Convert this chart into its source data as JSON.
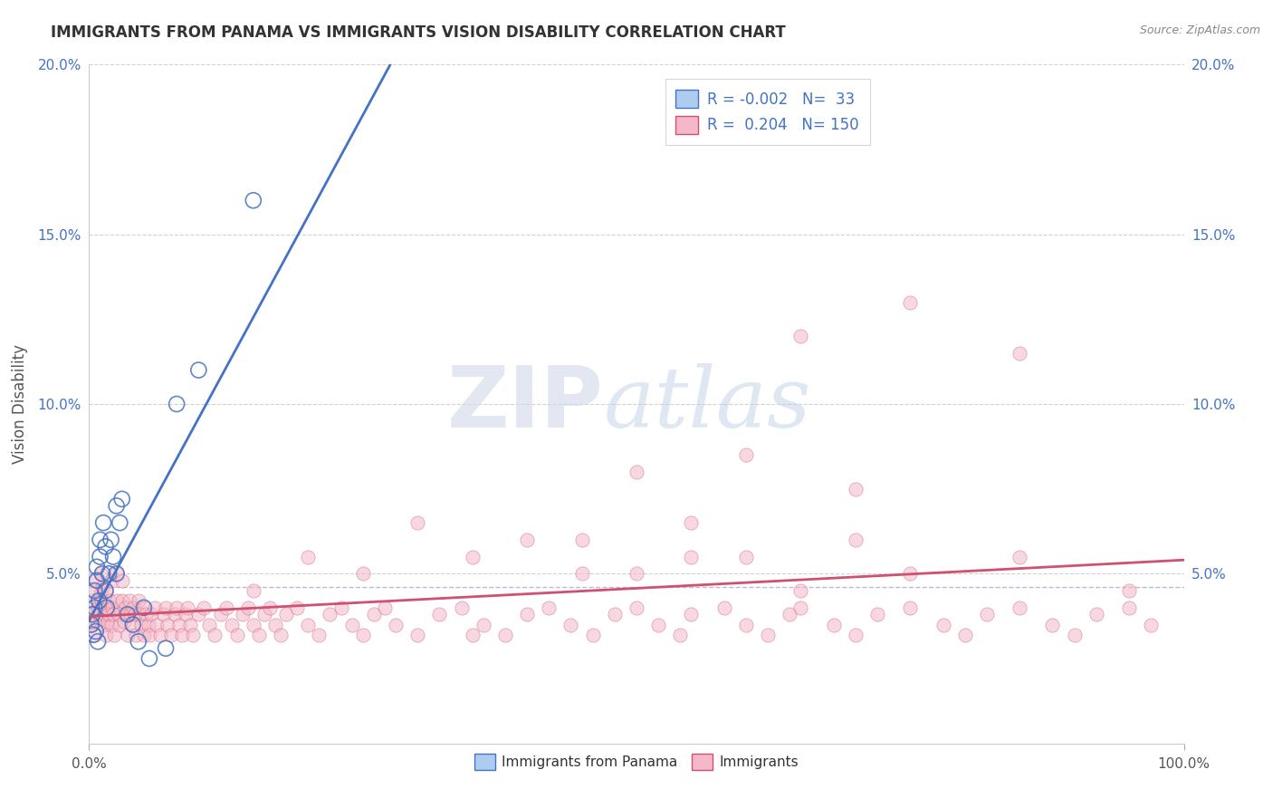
{
  "title": "IMMIGRANTS FROM PANAMA VS IMMIGRANTS VISION DISABILITY CORRELATION CHART",
  "source": "Source: ZipAtlas.com",
  "ylabel": "Vision Disability",
  "xlim": [
    0,
    1.0
  ],
  "ylim": [
    0,
    0.2
  ],
  "legend_r1": "-0.002",
  "legend_n1": "33",
  "legend_r2": "0.204",
  "legend_n2": "150",
  "color_blue": "#aeccf0",
  "color_pink": "#f4b8c8",
  "line_color_blue": "#4472c4",
  "line_color_pink": "#d05070",
  "background_color": "#ffffff",
  "blue_x": [
    0.002,
    0.003,
    0.004,
    0.005,
    0.005,
    0.006,
    0.007,
    0.007,
    0.008,
    0.009,
    0.01,
    0.01,
    0.012,
    0.013,
    0.015,
    0.015,
    0.016,
    0.018,
    0.02,
    0.022,
    0.025,
    0.025,
    0.028,
    0.03,
    0.035,
    0.04,
    0.045,
    0.05,
    0.055,
    0.07,
    0.08,
    0.1,
    0.15
  ],
  "blue_y": [
    0.035,
    0.038,
    0.032,
    0.04,
    0.045,
    0.033,
    0.048,
    0.052,
    0.03,
    0.042,
    0.055,
    0.06,
    0.05,
    0.065,
    0.045,
    0.058,
    0.04,
    0.05,
    0.06,
    0.055,
    0.05,
    0.07,
    0.065,
    0.072,
    0.038,
    0.035,
    0.03,
    0.04,
    0.025,
    0.028,
    0.1,
    0.11,
    0.16
  ],
  "pink_x": [
    0.001,
    0.002,
    0.003,
    0.004,
    0.005,
    0.005,
    0.006,
    0.007,
    0.008,
    0.009,
    0.01,
    0.01,
    0.011,
    0.012,
    0.013,
    0.014,
    0.015,
    0.015,
    0.016,
    0.017,
    0.018,
    0.019,
    0.02,
    0.02,
    0.021,
    0.022,
    0.023,
    0.025,
    0.025,
    0.027,
    0.028,
    0.03,
    0.03,
    0.032,
    0.033,
    0.035,
    0.035,
    0.037,
    0.038,
    0.04,
    0.04,
    0.042,
    0.043,
    0.045,
    0.046,
    0.048,
    0.05,
    0.05,
    0.052,
    0.054,
    0.055,
    0.057,
    0.06,
    0.062,
    0.065,
    0.068,
    0.07,
    0.072,
    0.075,
    0.078,
    0.08,
    0.082,
    0.085,
    0.088,
    0.09,
    0.092,
    0.095,
    0.1,
    0.105,
    0.11,
    0.115,
    0.12,
    0.125,
    0.13,
    0.135,
    0.14,
    0.145,
    0.15,
    0.155,
    0.16,
    0.165,
    0.17,
    0.175,
    0.18,
    0.19,
    0.2,
    0.21,
    0.22,
    0.23,
    0.24,
    0.25,
    0.26,
    0.27,
    0.28,
    0.3,
    0.32,
    0.34,
    0.36,
    0.38,
    0.4,
    0.42,
    0.44,
    0.46,
    0.48,
    0.5,
    0.52,
    0.54,
    0.55,
    0.58,
    0.6,
    0.62,
    0.64,
    0.65,
    0.68,
    0.7,
    0.72,
    0.75,
    0.78,
    0.8,
    0.82,
    0.85,
    0.88,
    0.9,
    0.92,
    0.95,
    0.97,
    0.35,
    0.45,
    0.55,
    0.65,
    0.75,
    0.85,
    0.5,
    0.6,
    0.7,
    0.4,
    0.3,
    0.2,
    0.15,
    0.25,
    0.35,
    0.45,
    0.55,
    0.65,
    0.75,
    0.85,
    0.95,
    0.5,
    0.6,
    0.7
  ],
  "pink_y": [
    0.04,
    0.035,
    0.042,
    0.038,
    0.045,
    0.032,
    0.048,
    0.036,
    0.04,
    0.038,
    0.044,
    0.05,
    0.042,
    0.046,
    0.035,
    0.038,
    0.045,
    0.032,
    0.04,
    0.036,
    0.038,
    0.042,
    0.048,
    0.035,
    0.04,
    0.038,
    0.032,
    0.042,
    0.05,
    0.038,
    0.035,
    0.042,
    0.048,
    0.036,
    0.04,
    0.038,
    0.032,
    0.042,
    0.038,
    0.04,
    0.035,
    0.038,
    0.032,
    0.042,
    0.038,
    0.035,
    0.04,
    0.032,
    0.038,
    0.035,
    0.032,
    0.038,
    0.04,
    0.035,
    0.032,
    0.038,
    0.04,
    0.035,
    0.032,
    0.038,
    0.04,
    0.035,
    0.032,
    0.038,
    0.04,
    0.035,
    0.032,
    0.038,
    0.04,
    0.035,
    0.032,
    0.038,
    0.04,
    0.035,
    0.032,
    0.038,
    0.04,
    0.035,
    0.032,
    0.038,
    0.04,
    0.035,
    0.032,
    0.038,
    0.04,
    0.035,
    0.032,
    0.038,
    0.04,
    0.035,
    0.032,
    0.038,
    0.04,
    0.035,
    0.032,
    0.038,
    0.04,
    0.035,
    0.032,
    0.038,
    0.04,
    0.035,
    0.032,
    0.038,
    0.04,
    0.035,
    0.032,
    0.038,
    0.04,
    0.035,
    0.032,
    0.038,
    0.04,
    0.035,
    0.032,
    0.038,
    0.04,
    0.035,
    0.032,
    0.038,
    0.04,
    0.035,
    0.032,
    0.038,
    0.04,
    0.035,
    0.032,
    0.05,
    0.055,
    0.045,
    0.05,
    0.055,
    0.08,
    0.085,
    0.075,
    0.06,
    0.065,
    0.055,
    0.045,
    0.05,
    0.055,
    0.06,
    0.065,
    0.12,
    0.13,
    0.115,
    0.045,
    0.05,
    0.055,
    0.06
  ]
}
